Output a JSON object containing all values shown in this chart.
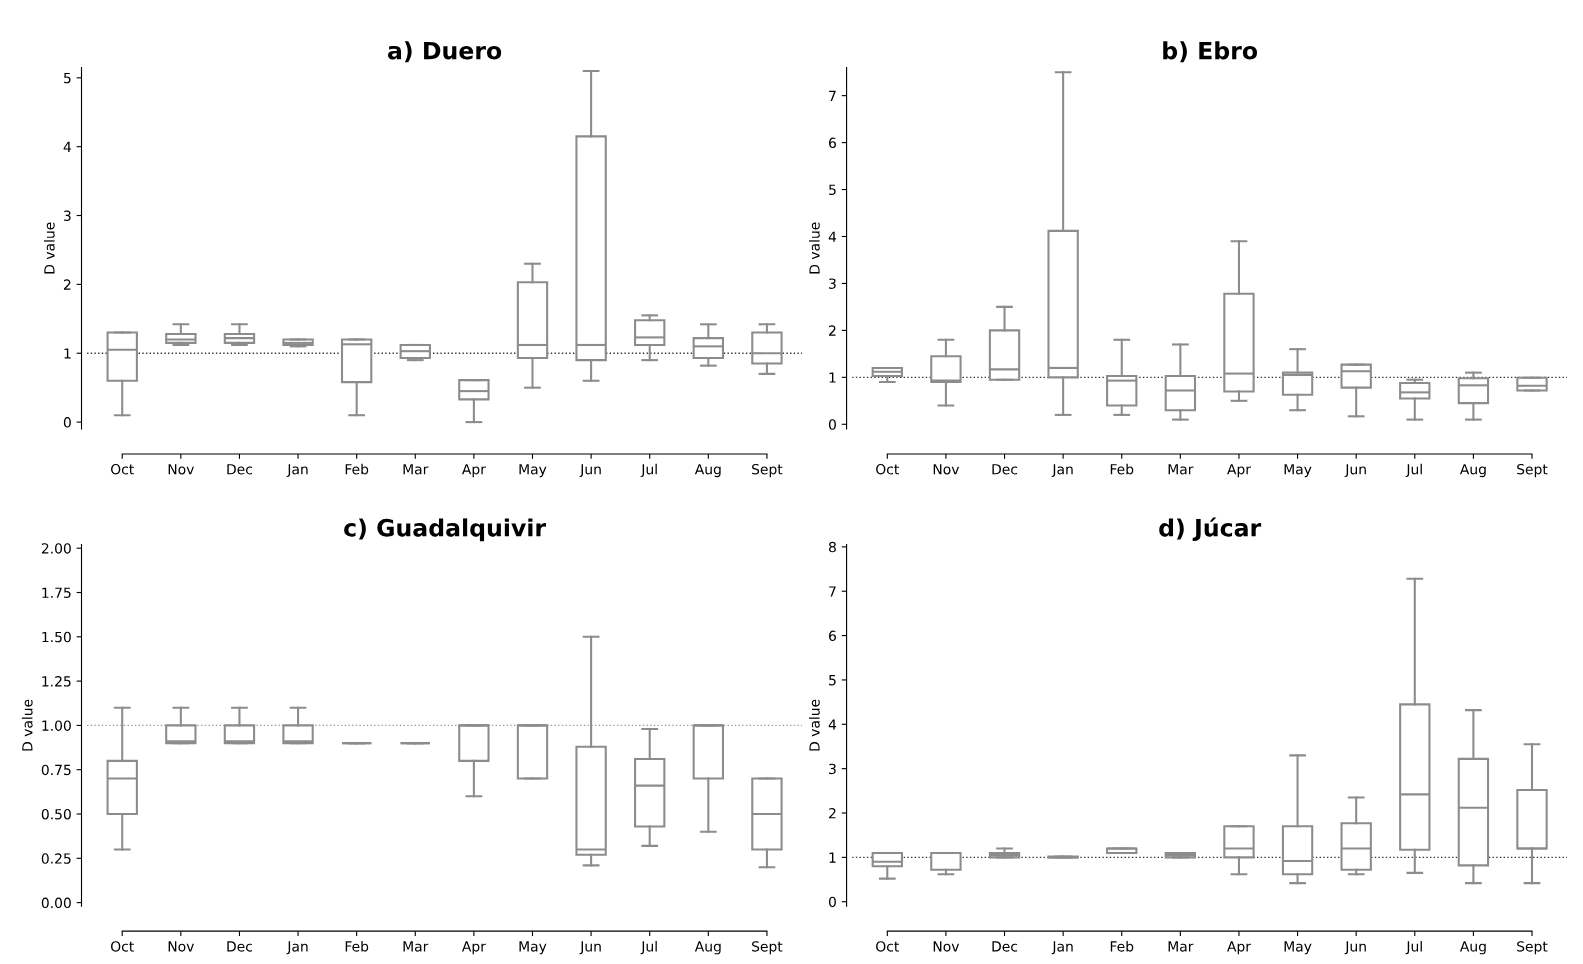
{
  "chart_data": [
    {
      "type": "box",
      "title": "a) Duero",
      "ylabel": "D value",
      "categories": [
        "Oct",
        "Nov",
        "Dec",
        "Jan",
        "Feb",
        "Mar",
        "Apr",
        "May",
        "Jun",
        "Jul",
        "Aug",
        "Sept"
      ],
      "color": "#8c8c8c",
      "ylim": [
        -0.1,
        5.15
      ],
      "yticks": [
        0,
        1,
        2,
        3,
        4,
        5
      ],
      "grid": false,
      "ref_lines": [
        {
          "axis": "y",
          "value": 1,
          "color": "#333333",
          "line_style": "dotted"
        }
      ],
      "boxes": [
        {
          "low": 0.1,
          "q1": 0.6,
          "median": 1.05,
          "q3": 1.3,
          "high": 1.3
        },
        {
          "low": 1.12,
          "q1": 1.15,
          "median": 1.2,
          "q3": 1.28,
          "high": 1.42
        },
        {
          "low": 1.12,
          "q1": 1.15,
          "median": 1.22,
          "q3": 1.28,
          "high": 1.42
        },
        {
          "low": 1.1,
          "q1": 1.12,
          "median": 1.15,
          "q3": 1.2,
          "high": 1.2
        },
        {
          "low": 0.1,
          "q1": 0.58,
          "median": 1.13,
          "q3": 1.2,
          "high": 1.2
        },
        {
          "low": 0.9,
          "q1": 0.93,
          "median": 1.03,
          "q3": 1.12,
          "high": 1.12
        },
        {
          "low": 0.0,
          "q1": 0.33,
          "median": 0.45,
          "q3": 0.61,
          "high": 0.61
        },
        {
          "low": 0.5,
          "q1": 0.93,
          "median": 1.12,
          "q3": 2.03,
          "high": 2.3
        },
        {
          "low": 0.6,
          "q1": 0.9,
          "median": 1.12,
          "q3": 4.15,
          "high": 5.1
        },
        {
          "low": 0.9,
          "q1": 1.12,
          "median": 1.23,
          "q3": 1.48,
          "high": 1.55
        },
        {
          "low": 0.82,
          "q1": 0.93,
          "median": 1.1,
          "q3": 1.22,
          "high": 1.42
        },
        {
          "low": 0.7,
          "q1": 0.85,
          "median": 1.0,
          "q3": 1.3,
          "high": 1.42
        }
      ]
    },
    {
      "type": "box",
      "title": "b) Ebro",
      "ylabel": "D value",
      "categories": [
        "Oct",
        "Nov",
        "Dec",
        "Jan",
        "Feb",
        "Mar",
        "Apr",
        "May",
        "Jun",
        "Jul",
        "Aug",
        "Sept"
      ],
      "color": "#8c8c8c",
      "ylim": [
        -0.1,
        7.6
      ],
      "yticks": [
        0,
        1,
        2,
        3,
        4,
        5,
        6,
        7
      ],
      "grid": false,
      "ref_lines": [
        {
          "axis": "y",
          "value": 1,
          "color": "#333333",
          "line_style": "dotted"
        }
      ],
      "boxes": [
        {
          "low": 0.9,
          "q1": 1.03,
          "median": 1.12,
          "q3": 1.2,
          "high": 1.2
        },
        {
          "low": 0.4,
          "q1": 0.9,
          "median": 0.93,
          "q3": 1.45,
          "high": 1.8
        },
        {
          "low": 0.95,
          "q1": 0.95,
          "median": 1.17,
          "q3": 2.0,
          "high": 2.5
        },
        {
          "low": 0.2,
          "q1": 1.0,
          "median": 1.2,
          "q3": 4.12,
          "high": 7.5
        },
        {
          "low": 0.2,
          "q1": 0.4,
          "median": 0.93,
          "q3": 1.03,
          "high": 1.8
        },
        {
          "low": 0.1,
          "q1": 0.3,
          "median": 0.72,
          "q3": 1.03,
          "high": 1.7
        },
        {
          "low": 0.5,
          "q1": 0.7,
          "median": 1.08,
          "q3": 2.78,
          "high": 3.9
        },
        {
          "low": 0.3,
          "q1": 0.63,
          "median": 1.05,
          "q3": 1.1,
          "high": 1.6
        },
        {
          "low": 0.17,
          "q1": 0.78,
          "median": 1.13,
          "q3": 1.27,
          "high": 1.27
        },
        {
          "low": 0.1,
          "q1": 0.55,
          "median": 0.68,
          "q3": 0.88,
          "high": 0.95
        },
        {
          "low": 0.1,
          "q1": 0.45,
          "median": 0.83,
          "q3": 0.98,
          "high": 1.1
        },
        {
          "low": 0.72,
          "q1": 0.72,
          "median": 0.82,
          "q3": 0.99,
          "high": 0.99
        }
      ]
    },
    {
      "type": "box",
      "title": "c) Guadalquivir",
      "ylabel": "D value",
      "categories": [
        "Oct",
        "Nov",
        "Dec",
        "Jan",
        "Feb",
        "Mar",
        "Apr",
        "May",
        "Jun",
        "Jul",
        "Aug",
        "Sept"
      ],
      "color": "#8c8c8c",
      "ylim": [
        -0.02,
        2.02
      ],
      "yticks": [
        {
          "value": 0,
          "label": "0.00"
        },
        {
          "value": 0.25,
          "label": "0.25"
        },
        {
          "value": 0.5,
          "label": "0.50"
        },
        {
          "value": 0.75,
          "label": "0.75"
        },
        {
          "value": 1,
          "label": "1.00"
        },
        {
          "value": 1.25,
          "label": "1.25"
        },
        {
          "value": 1.5,
          "label": "1.50"
        },
        {
          "value": 1.75,
          "label": "1.75"
        },
        {
          "value": 2,
          "label": "2.00"
        }
      ],
      "grid": false,
      "ref_lines": [
        {
          "axis": "y",
          "value": 1,
          "color": "#999999",
          "line_style": "dotted"
        }
      ],
      "boxes": [
        {
          "low": 0.3,
          "q1": 0.5,
          "median": 0.7,
          "q3": 0.8,
          "high": 1.1
        },
        {
          "low": 0.9,
          "q1": 0.9,
          "median": 0.91,
          "q3": 1.0,
          "high": 1.1
        },
        {
          "low": 0.9,
          "q1": 0.9,
          "median": 0.91,
          "q3": 1.0,
          "high": 1.1
        },
        {
          "low": 0.9,
          "q1": 0.9,
          "median": 0.91,
          "q3": 1.0,
          "high": 1.1
        },
        {
          "low": 0.9,
          "q1": 0.9,
          "median": 0.9,
          "q3": 0.9,
          "high": 0.9
        },
        {
          "low": 0.9,
          "q1": 0.9,
          "median": 0.9,
          "q3": 0.9,
          "high": 0.9
        },
        {
          "low": 0.6,
          "q1": 0.8,
          "median": 1.0,
          "q3": 1.0,
          "high": 1.0
        },
        {
          "low": 0.7,
          "q1": 0.7,
          "median": 1.0,
          "q3": 1.0,
          "high": 1.0
        },
        {
          "low": 0.21,
          "q1": 0.27,
          "median": 0.3,
          "q3": 0.88,
          "high": 1.5
        },
        {
          "low": 0.32,
          "q1": 0.43,
          "median": 0.66,
          "q3": 0.81,
          "high": 0.98
        },
        {
          "low": 0.4,
          "q1": 0.7,
          "median": 1.0,
          "q3": 1.0,
          "high": 1.0
        },
        {
          "low": 0.2,
          "q1": 0.3,
          "median": 0.5,
          "q3": 0.7,
          "high": 0.7
        }
      ]
    },
    {
      "type": "box",
      "title": "d) Júcar",
      "ylabel": "D value",
      "categories": [
        "Oct",
        "Nov",
        "Dec",
        "Jan",
        "Feb",
        "Mar",
        "Apr",
        "May",
        "Jun",
        "Jul",
        "Aug",
        "Sept"
      ],
      "color": "#8c8c8c",
      "ylim": [
        -0.1,
        8.05
      ],
      "yticks": [
        0,
        1,
        2,
        3,
        4,
        5,
        6,
        7,
        8
      ],
      "grid": false,
      "ref_lines": [
        {
          "axis": "y",
          "value": 1,
          "color": "#333333",
          "line_style": "dotted"
        }
      ],
      "boxes": [
        {
          "low": 0.52,
          "q1": 0.8,
          "median": 0.9,
          "q3": 1.1,
          "high": 1.1
        },
        {
          "low": 0.62,
          "q1": 0.72,
          "median": 1.1,
          "q3": 1.1,
          "high": 1.1
        },
        {
          "low": 1.0,
          "q1": 1.0,
          "median": 1.05,
          "q3": 1.1,
          "high": 1.2
        },
        {
          "low": 1.0,
          "q1": 1.0,
          "median": 1.0,
          "q3": 1.02,
          "high": 1.02
        },
        {
          "low": 1.1,
          "q1": 1.1,
          "median": 1.2,
          "q3": 1.2,
          "high": 1.2
        },
        {
          "low": 1.0,
          "q1": 1.0,
          "median": 1.05,
          "q3": 1.1,
          "high": 1.1
        },
        {
          "low": 0.62,
          "q1": 1.0,
          "median": 1.2,
          "q3": 1.7,
          "high": 1.7
        },
        {
          "low": 0.42,
          "q1": 0.62,
          "median": 0.92,
          "q3": 1.7,
          "high": 3.3
        },
        {
          "low": 0.62,
          "q1": 0.72,
          "median": 1.2,
          "q3": 1.77,
          "high": 2.35
        },
        {
          "low": 0.65,
          "q1": 1.17,
          "median": 2.42,
          "q3": 4.45,
          "high": 7.28
        },
        {
          "low": 0.42,
          "q1": 0.82,
          "median": 2.12,
          "q3": 3.22,
          "high": 4.32
        },
        {
          "low": 0.42,
          "q1": 1.2,
          "median": 1.2,
          "q3": 2.52,
          "high": 3.55
        }
      ]
    }
  ]
}
